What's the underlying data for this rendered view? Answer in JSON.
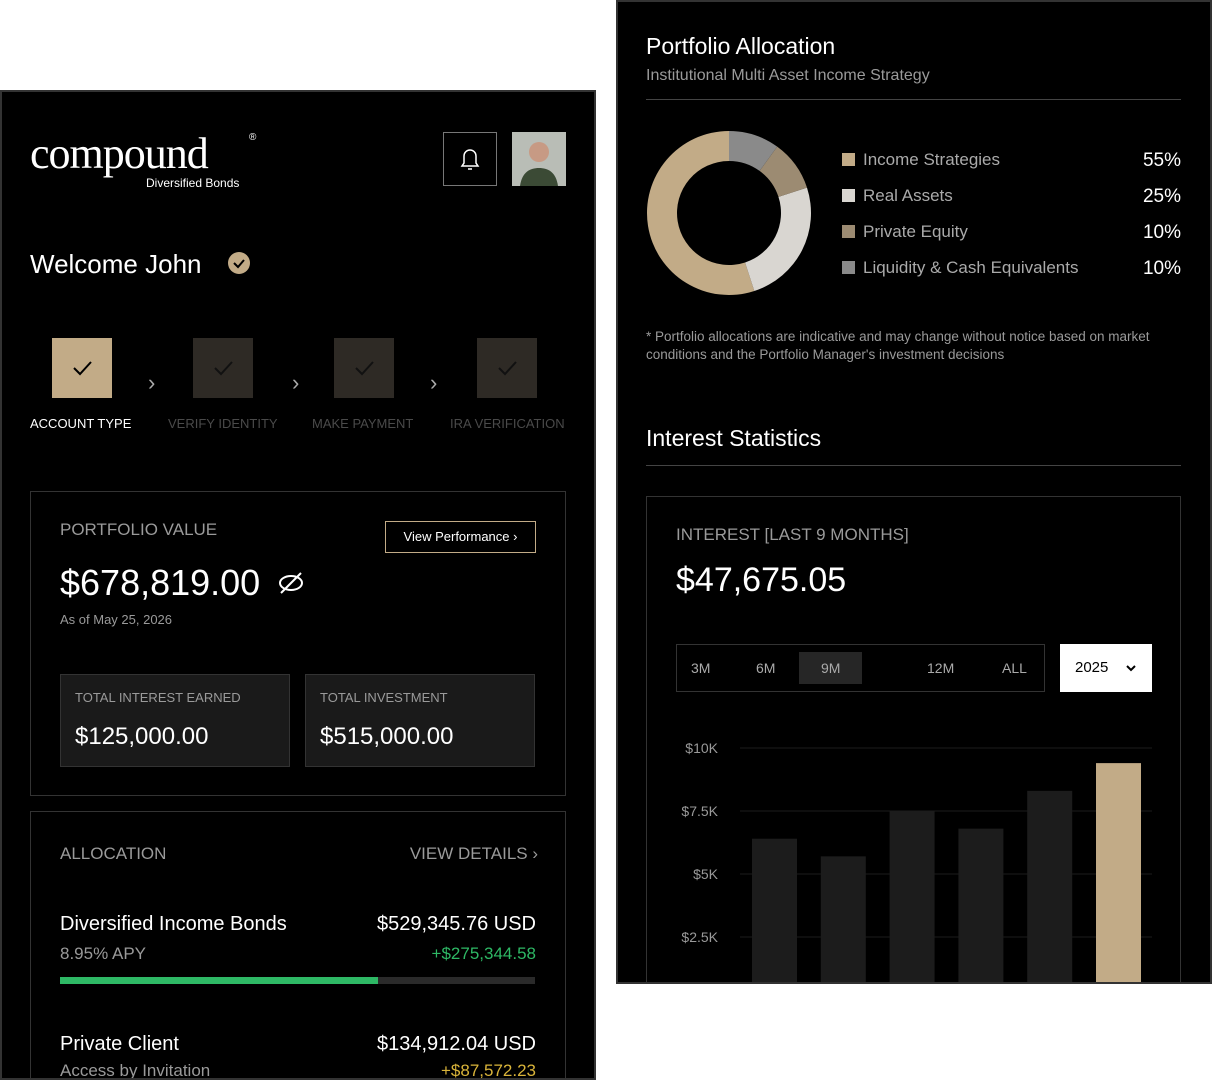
{
  "left": {
    "logo": {
      "name": "compound",
      "mark": "®",
      "tagline": "Diversified Bonds"
    },
    "welcome": "Welcome John",
    "steps": [
      "ACCOUNT TYPE",
      "VERIFY IDENTITY",
      "MAKE PAYMENT",
      "IRA VERIFICATION"
    ],
    "portfolio": {
      "label": "PORTFOLIO VALUE",
      "button": "View Performance",
      "value": "$678,819.00",
      "as_of": "As of May 25, 2026",
      "boxes": [
        {
          "label": "TOTAL INTEREST EARNED",
          "value": "$125,000.00"
        },
        {
          "label": "TOTAL INVESTMENT",
          "value": "$515,000.00"
        }
      ]
    },
    "allocation": {
      "label": "ALLOCATION",
      "link": "VIEW DETAILS",
      "items": [
        {
          "name": "Diversified Income Bonds",
          "amount": "$529,345.76 USD",
          "sub": "8.95% APY",
          "gain": "+$275,344.58",
          "progress": 67
        },
        {
          "name": "Private Client",
          "amount": "$134,912.04 USD",
          "sub": "Access by Invitation",
          "gain": "+$87,572.23"
        }
      ]
    }
  },
  "right": {
    "title": "Portfolio Allocation",
    "subtitle": "Institutional Multi Asset Income Strategy",
    "allocation_chart": {
      "type": "pie",
      "categories": [
        "Income Strategies",
        "Real Assets",
        "Private Equity",
        "Liquidity & Cash Equivalents"
      ],
      "values": [
        55,
        25,
        10,
        10
      ],
      "value_labels": [
        "55%",
        "25%",
        "10%",
        "10%"
      ],
      "colors": [
        "#c2ab87",
        "#d9d6d1",
        "#9c8b72",
        "#8a8a8a"
      ]
    },
    "note": "* Portfolio allocations are indicative and may change without notice based on market conditions and the Portfolio Manager's investment decisions",
    "stats_title": "Interest Statistics",
    "card": {
      "label": "INTEREST [LAST 9 MONTHS]",
      "value": "$47,675.05",
      "ranges": [
        "3M",
        "6M",
        "9M",
        "12M",
        "ALL"
      ],
      "selected_range": 2,
      "year": "2025"
    },
    "interest_chart": {
      "type": "bar",
      "values": [
        6400,
        5700,
        7500,
        6800,
        8300,
        9400
      ],
      "color": "#1c1c1c",
      "highlight_color": "#c2ab87",
      "ylim": [
        0,
        10000
      ],
      "yticks": [
        {
          "value": 2500,
          "label": "$2.5K"
        },
        {
          "value": 5000,
          "label": "$5K"
        },
        {
          "value": 7500,
          "label": "$7.5K"
        },
        {
          "value": 10000,
          "label": "$10K"
        }
      ],
      "grid": true
    }
  }
}
